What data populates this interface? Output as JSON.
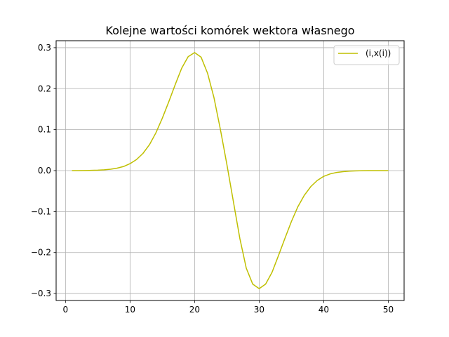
{
  "chart_data": {
    "type": "line",
    "title": "Kolejne wartości komórek wektora własnego",
    "xlabel": "",
    "ylabel": "",
    "xlim": [
      -1.45,
      52.45
    ],
    "ylim": [
      -0.317,
      0.317
    ],
    "xticks": [
      0,
      10,
      20,
      30,
      40,
      50
    ],
    "yticks": [
      -0.3,
      -0.2,
      -0.1,
      0.0,
      0.1,
      0.2,
      0.3
    ],
    "xtick_labels": [
      "0",
      "10",
      "20",
      "30",
      "40",
      "50"
    ],
    "ytick_labels": [
      "−0.3",
      "−0.2",
      "−0.1",
      "0.0",
      "0.1",
      "0.2",
      "0.3"
    ],
    "grid": true,
    "legend_position": "top-right",
    "series": [
      {
        "name": "(i,x(i))",
        "color": "#bfbf00",
        "x": [
          1,
          2,
          3,
          4,
          5,
          6,
          7,
          8,
          9,
          10,
          11,
          12,
          13,
          14,
          15,
          16,
          17,
          18,
          19,
          20,
          21,
          22,
          23,
          24,
          25,
          26,
          27,
          28,
          29,
          30,
          31,
          32,
          33,
          34,
          35,
          36,
          37,
          38,
          39,
          40,
          41,
          42,
          43,
          44,
          45,
          46,
          47,
          48,
          49,
          50
        ],
        "y": [
          0.0,
          0.0,
          0.0003,
          0.0006,
          0.001,
          0.002,
          0.0035,
          0.006,
          0.01,
          0.017,
          0.027,
          0.042,
          0.063,
          0.092,
          0.128,
          0.168,
          0.21,
          0.25,
          0.278,
          0.288,
          0.277,
          0.238,
          0.178,
          0.1,
          0.015,
          -0.075,
          -0.165,
          -0.238,
          -0.277,
          -0.288,
          -0.277,
          -0.248,
          -0.207,
          -0.165,
          -0.124,
          -0.088,
          -0.06,
          -0.039,
          -0.024,
          -0.014,
          -0.008,
          -0.0045,
          -0.0025,
          -0.0013,
          -0.0006,
          -0.0003,
          0.0,
          0.0,
          0.0,
          0.0
        ]
      }
    ]
  }
}
